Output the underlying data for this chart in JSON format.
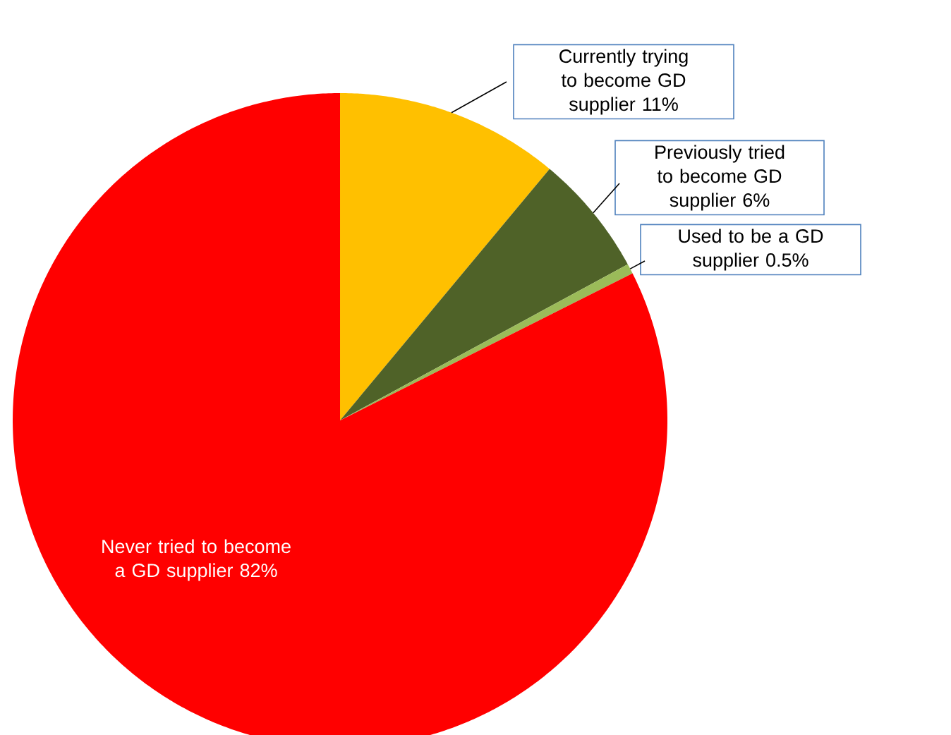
{
  "chart_data": {
    "type": "pie",
    "categories": [
      "Currently trying to become GD supplier",
      "Previously tried to become GD supplier",
      "Used to be a GD supplier",
      "Never tried to become a GD supplier"
    ],
    "values": [
      11,
      6,
      0.5,
      82
    ],
    "value_labels": [
      "11%",
      "6%",
      "0.5%",
      "82%"
    ],
    "colors": [
      "#ffc000",
      "#4f6228",
      "#9bbb59",
      "#ff0000"
    ]
  }
}
